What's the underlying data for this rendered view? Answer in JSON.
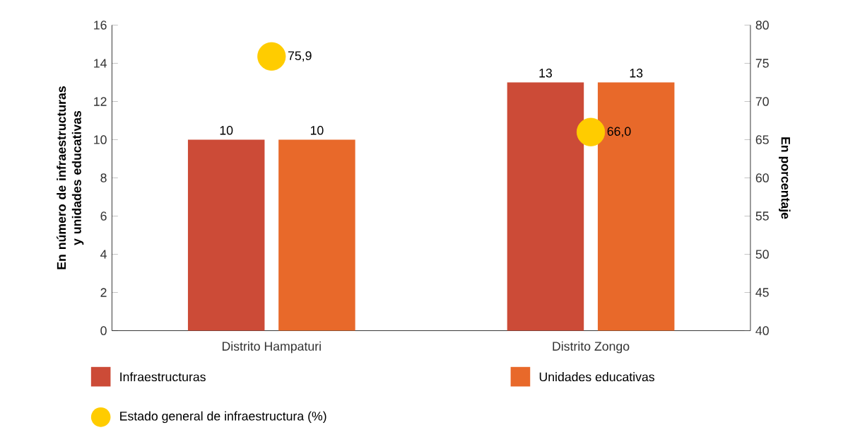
{
  "chart_data": {
    "type": "bar",
    "categories": [
      "Distrito Hampaturi",
      "Distrito Zongo"
    ],
    "ylabel": "En número de infraestructuras y unidades educativas",
    "y2label": "En porcentaje",
    "ylim": [
      0,
      16
    ],
    "yticks": [
      0,
      2,
      4,
      6,
      8,
      10,
      12,
      14,
      16
    ],
    "y2lim": [
      40,
      80
    ],
    "y2ticks": [
      40,
      45,
      50,
      55,
      60,
      65,
      70,
      75,
      80
    ],
    "legend": "bottom",
    "grid": false,
    "series": [
      {
        "name": "Infraestructuras",
        "color": "#cc4b37",
        "values": [
          10,
          13
        ],
        "value_labels": [
          "10",
          "13"
        ]
      },
      {
        "name": "Unidades educativas",
        "color": "#e8692a",
        "values": [
          10,
          13
        ],
        "value_labels": [
          "10",
          "13"
        ]
      },
      {
        "name": "Estado general de infraestructura (%)",
        "type": "scatter",
        "axis": "y2",
        "marker": "circle",
        "color": "#ffcc00",
        "values": [
          75.9,
          66.0
        ],
        "value_labels": [
          "75,9",
          "66,0"
        ]
      }
    ]
  }
}
